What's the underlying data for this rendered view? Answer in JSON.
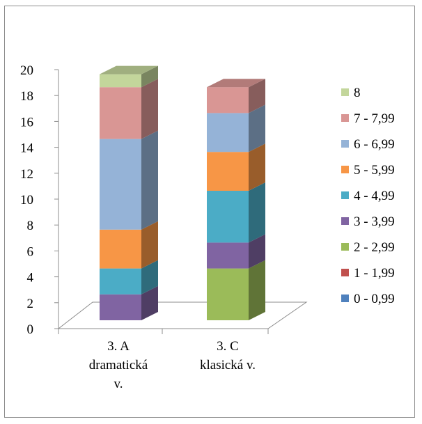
{
  "chart_data": {
    "type": "bar",
    "stacked": true,
    "three_d": true,
    "title": "",
    "xlabel": "",
    "ylabel": "",
    "ylim": [
      0,
      20
    ],
    "y_ticks": [
      "0",
      "2",
      "4",
      "6",
      "8",
      "10",
      "12",
      "14",
      "16",
      "18",
      "20"
    ],
    "grid": false,
    "legend_position": "right",
    "categories": [
      [
        "3. A",
        "dramatická",
        "v."
      ],
      [
        "3. C",
        "klasická v."
      ]
    ],
    "series": [
      {
        "name": "0 - 0,99",
        "color": "#4F81BD",
        "values": [
          0,
          0
        ]
      },
      {
        "name": "1 - 1,99",
        "color": "#C0504D",
        "values": [
          0,
          0
        ]
      },
      {
        "name": "2 - 2,99",
        "color": "#9BBB59",
        "values": [
          0,
          4
        ]
      },
      {
        "name": "3 - 3,99",
        "color": "#8064A2",
        "values": [
          2,
          2
        ]
      },
      {
        "name": "4 - 4,99",
        "color": "#4BACC6",
        "values": [
          2,
          4
        ]
      },
      {
        "name": "5 - 5,99",
        "color": "#F79646",
        "values": [
          3,
          3
        ]
      },
      {
        "name": "6 - 6,99",
        "color": "#95B3D7",
        "values": [
          7,
          3
        ]
      },
      {
        "name": "7 - 7,99",
        "color": "#D99694",
        "values": [
          4,
          2
        ]
      },
      {
        "name": "8",
        "color": "#C3D69B",
        "values": [
          1,
          0
        ]
      }
    ]
  }
}
